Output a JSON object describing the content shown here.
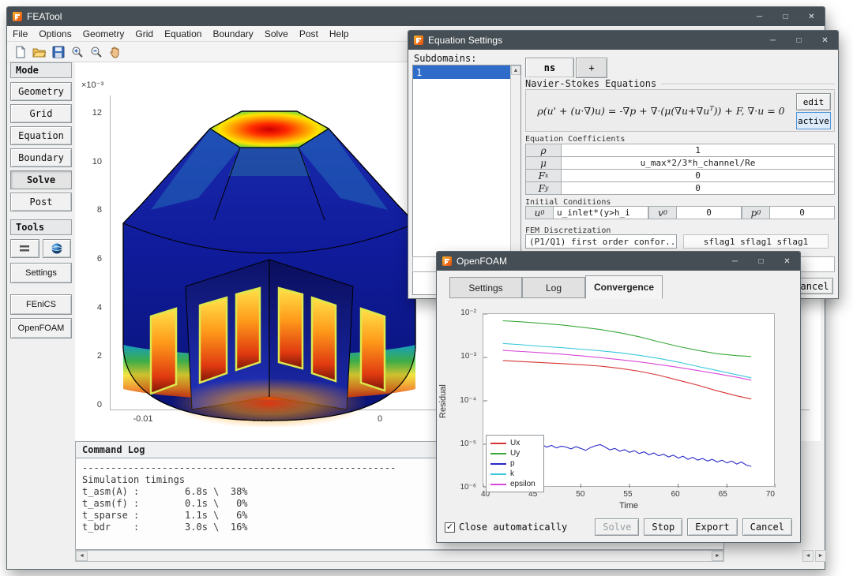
{
  "window_controls": {
    "minimize": "─",
    "maximize": "□",
    "close": "✕"
  },
  "scroll": {
    "left": "◄",
    "right": "►",
    "up": "▲"
  },
  "app": {
    "title": "FEATool",
    "menu_items": [
      "File",
      "Options",
      "Geometry",
      "Grid",
      "Equation",
      "Boundary",
      "Solve",
      "Post",
      "Help"
    ],
    "toolbar_icons": [
      "new-icon",
      "open-icon",
      "save-icon",
      "zoom-in-icon",
      "zoom-out-icon",
      "pan-icon"
    ]
  },
  "sidebar": {
    "mode_header": "Mode",
    "mode_items": [
      "Geometry",
      "Grid",
      "Equation",
      "Boundary",
      "Solve",
      "Post"
    ],
    "active_mode": "Solve",
    "tools_header": "Tools",
    "tool_buttons": [
      "Settings",
      "FEniCS",
      "OpenFOAM"
    ]
  },
  "plot": {
    "y_exp_label": "×10⁻³",
    "y_ticks": [
      "12",
      "10",
      "8",
      "6",
      "4",
      "2",
      "0"
    ],
    "x_ticks": [
      "-0.01",
      "-0.005",
      "0"
    ]
  },
  "command_log": {
    "title": "Command Log",
    "lines": [
      "-------------------------------------------------------",
      "Simulation timings",
      "",
      "t_asm(A) :        6.8s \\  38%",
      "t_asm(f) :        0.1s \\   0%",
      "t_sparse :        1.1s \\   6%",
      "t_bdr    :        3.0s \\  16%"
    ]
  },
  "equation_dialog": {
    "title": "Equation Settings",
    "subdomains_label": "Subdomains:",
    "subdomains": [
      "1"
    ],
    "tabs": {
      "ns": "ns",
      "add": "+"
    },
    "group_title": "Navier-Stokes Equations",
    "equation": {
      "a": "ρ(u' + (u·∇)u) = -∇p + ∇·(μ(∇u+∇u",
      "sup": "T",
      "b": ")) + F, ∇·u = 0"
    },
    "edit_button": "edit",
    "active_button": "active",
    "coeff_header": "Equation Coefficients",
    "coefficients": [
      {
        "base": "ρ",
        "sub": "",
        "value": "1"
      },
      {
        "base": "μ",
        "sub": "",
        "value": "u_max*2/3*h_channel/Re"
      },
      {
        "base": "F",
        "sub": "x",
        "value": "0"
      },
      {
        "base": "F",
        "sub": "y",
        "value": "0"
      }
    ],
    "init_header": "Initial Conditions",
    "init": [
      {
        "base": "u",
        "sub": "0",
        "value": "u_inlet*(y>h_i"
      },
      {
        "base": "v",
        "sub": "0",
        "value": "0"
      },
      {
        "base": "p",
        "sub": "0",
        "value": "0"
      }
    ],
    "fem_header": "FEM Discretization",
    "fem_dropdown": "(P1/Q1) first order confor...",
    "fem_flags": "sflag1 sflag1 sflag1",
    "cancel_button": "Cancel"
  },
  "openfoam_dialog": {
    "title": "OpenFOAM",
    "tabs": [
      "Settings",
      "Log",
      "Convergence"
    ],
    "active_tab": "Convergence",
    "checkbox_label": "Close automatically",
    "checkbox_checked": true,
    "check_glyph": "✓",
    "buttons": {
      "solve": "Solve",
      "stop": "Stop",
      "export": "Export",
      "cancel": "Cancel"
    }
  },
  "chart_data": {
    "type": "line",
    "title": "",
    "xlabel": "Time",
    "ylabel": "Residual",
    "xlim": [
      40,
      70
    ],
    "ylim": [
      1e-06,
      0.01
    ],
    "yscale": "log",
    "grid": false,
    "legend_position": "bottom-left",
    "x_tick_values": [
      40,
      45,
      50,
      55,
      60,
      65,
      70
    ],
    "x_tick_labels": [
      "40",
      "45",
      "50",
      "55",
      "60",
      "65",
      "70"
    ],
    "y_tick_values": [
      0.01,
      0.001,
      0.0001,
      1e-05,
      1e-06
    ],
    "y_tick_labels": [
      "10⁻²",
      "10⁻³",
      "10⁻⁴",
      "10⁻⁵",
      "10⁻⁶"
    ],
    "series": [
      {
        "name": "Ux",
        "color": "#d83434",
        "points": [
          [
            42,
            0.00085
          ],
          [
            44,
            0.0008
          ],
          [
            46,
            0.00076
          ],
          [
            48,
            0.00072
          ],
          [
            50,
            0.00068
          ],
          [
            52,
            0.00063
          ],
          [
            54,
            0.00056
          ],
          [
            56,
            0.00048
          ],
          [
            58,
            0.00039
          ],
          [
            60,
            0.0003
          ],
          [
            62,
            0.00023
          ],
          [
            64,
            0.00017
          ],
          [
            66,
            0.00013
          ],
          [
            67.5,
            0.00011
          ]
        ]
      },
      {
        "name": "Uy",
        "color": "#3aa83a",
        "points": [
          [
            42,
            0.007
          ],
          [
            44,
            0.0066
          ],
          [
            46,
            0.0061
          ],
          [
            48,
            0.0056
          ],
          [
            50,
            0.005
          ],
          [
            52,
            0.0044
          ],
          [
            54,
            0.0037
          ],
          [
            56,
            0.003
          ],
          [
            58,
            0.0023
          ],
          [
            60,
            0.0018
          ],
          [
            62,
            0.00145
          ],
          [
            64,
            0.00122
          ],
          [
            66,
            0.0011
          ],
          [
            67.5,
            0.00105
          ]
        ]
      },
      {
        "name": "p",
        "color": "#2828c8",
        "points": [
          [
            42.5,
            1.05e-05
          ],
          [
            43,
            9.2e-06
          ],
          [
            43.5,
            1.08e-05
          ],
          [
            44,
            9.6e-06
          ],
          [
            44.5,
            8.8e-06
          ],
          [
            45,
            1e-05
          ],
          [
            45.5,
            9e-06
          ],
          [
            46,
            9.8e-06
          ],
          [
            46.5,
            8.6e-06
          ],
          [
            47,
            9.4e-06
          ],
          [
            47.5,
            8.2e-06
          ],
          [
            48,
            9e-06
          ],
          [
            48.5,
            8.6e-06
          ],
          [
            49,
            7.8e-06
          ],
          [
            49.5,
            8.8e-06
          ],
          [
            50,
            8e-06
          ],
          [
            50.5,
            7.2e-06
          ],
          [
            51,
            8.4e-06
          ],
          [
            51.5,
            9.2e-06
          ],
          [
            52,
            9.8e-06
          ],
          [
            52.5,
            8.6e-06
          ],
          [
            53,
            7.4e-06
          ],
          [
            53.5,
            8e-06
          ],
          [
            54,
            6.9e-06
          ],
          [
            54.5,
            7.5e-06
          ],
          [
            55,
            6.5e-06
          ],
          [
            55.5,
            7.1e-06
          ],
          [
            56,
            6.1e-06
          ],
          [
            56.5,
            6.7e-06
          ],
          [
            57,
            5.7e-06
          ],
          [
            57.5,
            6.3e-06
          ],
          [
            58,
            5.4e-06
          ],
          [
            58.5,
            5.9e-06
          ],
          [
            59,
            5.1e-06
          ],
          [
            59.5,
            5.6e-06
          ],
          [
            60,
            4.8e-06
          ],
          [
            60.5,
            5.3e-06
          ],
          [
            61,
            4.5e-06
          ],
          [
            61.5,
            5e-06
          ],
          [
            62,
            4.3e-06
          ],
          [
            62.5,
            4.7e-06
          ],
          [
            63,
            4.1e-06
          ],
          [
            63.5,
            4.5e-06
          ],
          [
            64,
            3.9e-06
          ],
          [
            64.5,
            4.3e-06
          ],
          [
            65,
            3.7e-06
          ],
          [
            65.5,
            4.1e-06
          ],
          [
            66,
            3.5e-06
          ],
          [
            66.5,
            3.9e-06
          ],
          [
            67,
            3.3e-06
          ],
          [
            67.5,
            3.1e-06
          ]
        ]
      },
      {
        "name": "k",
        "color": "#38c8dc",
        "points": [
          [
            42,
            0.0021
          ],
          [
            44,
            0.00195
          ],
          [
            46,
            0.0018
          ],
          [
            48,
            0.00168
          ],
          [
            50,
            0.00155
          ],
          [
            52,
            0.00142
          ],
          [
            54,
            0.00128
          ],
          [
            56,
            0.00112
          ],
          [
            58,
            0.00095
          ],
          [
            60,
            0.00078
          ],
          [
            62,
            0.00062
          ],
          [
            64,
            0.0005
          ],
          [
            66,
            0.0004
          ],
          [
            67.5,
            0.00034
          ]
        ]
      },
      {
        "name": "epsilon",
        "color": "#d848d8",
        "points": [
          [
            42,
            0.00145
          ],
          [
            44,
            0.00137
          ],
          [
            46,
            0.00128
          ],
          [
            48,
            0.00119
          ],
          [
            50,
            0.00109
          ],
          [
            52,
            0.00099
          ],
          [
            54,
            0.00089
          ],
          [
            56,
            0.00079
          ],
          [
            58,
            0.00069
          ],
          [
            60,
            0.00059
          ],
          [
            62,
            0.0005
          ],
          [
            64,
            0.00042
          ],
          [
            66,
            0.00035
          ],
          [
            67.5,
            0.0003
          ]
        ]
      }
    ]
  }
}
